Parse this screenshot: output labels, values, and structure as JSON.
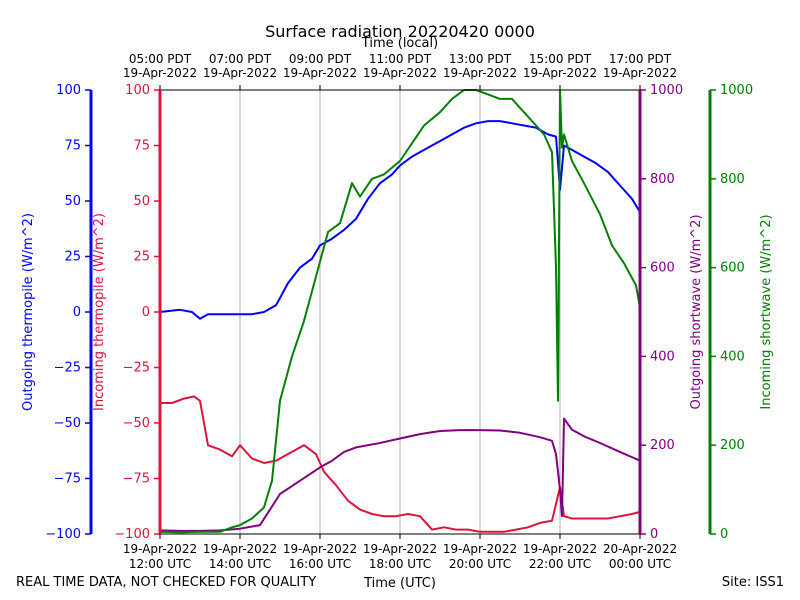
{
  "chart_data": {
    "type": "line",
    "title": "Surface radiation 20220420 0000",
    "xlabel": "Time (UTC)",
    "xlabel_top": "Time (local)",
    "x_range_hours_utc": [
      12,
      24
    ],
    "x_ticks_bottom": [
      {
        "t": 12,
        "line1": "19-Apr-2022",
        "line2": "12:00 UTC"
      },
      {
        "t": 14,
        "line1": "19-Apr-2022",
        "line2": "14:00 UTC"
      },
      {
        "t": 16,
        "line1": "19-Apr-2022",
        "line2": "16:00 UTC"
      },
      {
        "t": 18,
        "line1": "19-Apr-2022",
        "line2": "18:00 UTC"
      },
      {
        "t": 20,
        "line1": "19-Apr-2022",
        "line2": "20:00 UTC"
      },
      {
        "t": 22,
        "line1": "19-Apr-2022",
        "line2": "22:00 UTC"
      },
      {
        "t": 24,
        "line1": "20-Apr-2022",
        "line2": "00:00 UTC"
      }
    ],
    "x_ticks_top": [
      {
        "t": 12,
        "line1": "05:00 PDT",
        "line2": "19-Apr-2022"
      },
      {
        "t": 14,
        "line1": "07:00 PDT",
        "line2": "19-Apr-2022"
      },
      {
        "t": 16,
        "line1": "09:00 PDT",
        "line2": "19-Apr-2022"
      },
      {
        "t": 18,
        "line1": "11:00 PDT",
        "line2": "19-Apr-2022"
      },
      {
        "t": 20,
        "line1": "13:00 PDT",
        "line2": "19-Apr-2022"
      },
      {
        "t": 22,
        "line1": "15:00 PDT",
        "line2": "19-Apr-2022"
      },
      {
        "t": 24,
        "line1": "17:00 PDT",
        "line2": "19-Apr-2022"
      }
    ],
    "grid": "vertical",
    "axes": [
      {
        "id": "outgoing_thermopile",
        "label": "Outgoing thermopile (W/m^2)",
        "color": "#0000ff",
        "range": [
          -100,
          100
        ],
        "ticks": [
          -100,
          -75,
          -50,
          -25,
          0,
          25,
          50,
          75,
          100
        ]
      },
      {
        "id": "incoming_thermopile",
        "label": "Incoming thermopile (W/m^2)",
        "color": "#dc143c",
        "range": [
          -100,
          100
        ],
        "ticks": [
          -100,
          -75,
          -50,
          -25,
          0,
          25,
          50,
          75,
          100
        ]
      },
      {
        "id": "outgoing_shortwave",
        "label": "Outgoing shortwave (W/m^2)",
        "color": "#800080",
        "range": [
          0,
          1000
        ],
        "ticks": [
          0,
          200,
          400,
          600,
          800,
          1000
        ]
      },
      {
        "id": "incoming_shortwave",
        "label": "Incoming shortwave (W/m^2)",
        "color": "#008000",
        "range": [
          0,
          1000
        ],
        "ticks": [
          0,
          200,
          400,
          600,
          800,
          1000
        ]
      }
    ],
    "series": [
      {
        "axis": "outgoing_thermopile",
        "x": [
          12,
          12.5,
          12.8,
          13,
          13.2,
          13.5,
          14,
          14.3,
          14.6,
          14.9,
          15.2,
          15.5,
          15.8,
          16,
          16.3,
          16.6,
          16.9,
          17.2,
          17.5,
          17.8,
          18,
          18.3,
          18.6,
          19,
          19.3,
          19.6,
          19.9,
          20.2,
          20.5,
          20.8,
          21.1,
          21.4,
          21.7,
          21.9,
          22,
          22.1,
          22.3,
          22.6,
          22.9,
          23.2,
          23.5,
          23.8,
          24
        ],
        "y": [
          0,
          1,
          0,
          -3,
          -1,
          -1,
          -1,
          -1,
          0,
          3,
          13,
          20,
          24,
          30,
          33,
          37,
          42,
          51,
          58,
          62,
          66,
          70,
          73,
          77,
          80,
          83,
          85,
          86,
          86,
          85,
          84,
          83,
          80,
          79,
          55,
          75,
          73,
          70,
          67,
          63,
          57,
          51,
          45
        ]
      },
      {
        "axis": "incoming_thermopile",
        "x": [
          12,
          12.3,
          12.6,
          12.85,
          13,
          13.2,
          13.5,
          13.8,
          14,
          14.3,
          14.6,
          14.9,
          15.1,
          15.3,
          15.6,
          15.9,
          16.1,
          16.4,
          16.7,
          17,
          17.3,
          17.6,
          17.9,
          18.2,
          18.5,
          18.8,
          19.1,
          19.4,
          19.7,
          20,
          20.3,
          20.6,
          20.9,
          21.2,
          21.5,
          21.8,
          22,
          22.1,
          22.3,
          22.6,
          22.9,
          23.2,
          23.5,
          23.8,
          24
        ],
        "y": [
          -41,
          -41,
          -39,
          -38,
          -40,
          -60,
          -62,
          -65,
          -60,
          -66,
          -68,
          -67,
          -65,
          -63,
          -60,
          -64,
          -72,
          -78,
          -85,
          -89,
          -91,
          -92,
          -92,
          -91,
          -92,
          -98,
          -97,
          -98,
          -98,
          -99,
          -99,
          -99,
          -98,
          -97,
          -95,
          -94,
          -79,
          -92,
          -93,
          -93,
          -93,
          -93,
          -92,
          -91,
          -90
        ]
      },
      {
        "axis": "outgoing_shortwave",
        "x": [
          12,
          12.5,
          13,
          13.5,
          14,
          14.5,
          15,
          15.5,
          16,
          16.3,
          16.6,
          16.9,
          17.2,
          17.5,
          18,
          18.5,
          19,
          19.5,
          20,
          20.5,
          21,
          21.5,
          21.8,
          21.9,
          22,
          22.05,
          22.1,
          22.3,
          22.6,
          23,
          23.5,
          24
        ],
        "y": [
          8,
          7,
          7,
          8,
          12,
          20,
          90,
          120,
          150,
          165,
          185,
          195,
          200,
          205,
          215,
          225,
          232,
          234,
          234,
          233,
          228,
          218,
          210,
          180,
          100,
          40,
          260,
          235,
          220,
          205,
          185,
          165
        ]
      },
      {
        "axis": "incoming_shortwave",
        "x": [
          12,
          12.5,
          13,
          13.5,
          13.8,
          14,
          14.3,
          14.6,
          14.8,
          15,
          15.3,
          15.6,
          15.9,
          16.2,
          16.5,
          16.8,
          17,
          17.3,
          17.6,
          18,
          18.3,
          18.6,
          19,
          19.3,
          19.6,
          19.9,
          20.2,
          20.5,
          20.8,
          21,
          21.3,
          21.6,
          21.8,
          21.9,
          21.95,
          22,
          22.05,
          22.1,
          22.3,
          22.6,
          23,
          23.3,
          23.6,
          23.9,
          24
        ],
        "y": [
          5,
          4,
          5,
          5,
          15,
          20,
          35,
          60,
          120,
          300,
          400,
          480,
          580,
          680,
          700,
          790,
          760,
          800,
          810,
          840,
          880,
          920,
          950,
          980,
          1000,
          1000,
          990,
          980,
          980,
          960,
          930,
          900,
          860,
          600,
          300,
          1000,
          870,
          900,
          840,
          790,
          720,
          650,
          610,
          560,
          510
        ]
      }
    ]
  },
  "footer": {
    "note": "REAL TIME DATA, NOT CHECKED FOR QUALITY",
    "site": "Site: ISS1"
  }
}
